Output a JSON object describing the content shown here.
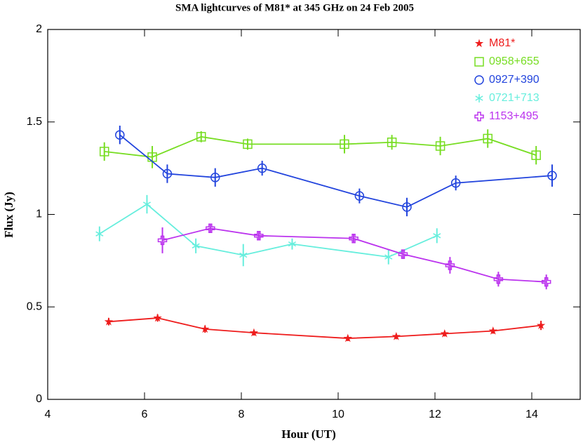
{
  "chart_data": {
    "type": "line",
    "title": "SMA lightcurves of M81* at 345 GHz on 24 Feb 2005",
    "x_label": "Hour (UT)",
    "y_label": "Flux (Jy)",
    "xlim": [
      4,
      15
    ],
    "ylim": [
      0,
      2
    ],
    "xticks": [
      4,
      6,
      8,
      10,
      12,
      14
    ],
    "yticks": [
      0,
      0.5,
      1,
      1.5,
      2
    ],
    "legend": "top-right",
    "series": [
      {
        "name": "M81*",
        "color": "#ee1c1c",
        "marker": "star",
        "x": [
          5.26,
          6.27,
          7.25,
          8.26,
          10.2,
          11.2,
          12.2,
          13.2,
          14.19
        ],
        "values": [
          0.42,
          0.44,
          0.38,
          0.36,
          0.33,
          0.34,
          0.355,
          0.37,
          0.4
        ],
        "errors": [
          0.02,
          0.02,
          0.02,
          0.015,
          0.015,
          0.015,
          0.015,
          0.015,
          0.025
        ]
      },
      {
        "name": "0958+655",
        "color": "#77dd22",
        "marker": "square",
        "x": [
          5.17,
          6.16,
          7.17,
          8.13,
          10.13,
          11.11,
          12.11,
          13.09,
          14.09
        ],
        "values": [
          1.34,
          1.31,
          1.42,
          1.38,
          1.38,
          1.39,
          1.37,
          1.41,
          1.32
        ],
        "errors": [
          0.05,
          0.06,
          0.03,
          0.03,
          0.05,
          0.04,
          0.05,
          0.05,
          0.05
        ]
      },
      {
        "name": "0927+390",
        "color": "#2244dd",
        "marker": "circle",
        "x": [
          5.49,
          6.47,
          7.46,
          8.43,
          10.44,
          11.42,
          12.43,
          14.42
        ],
        "values": [
          1.43,
          1.22,
          1.2,
          1.25,
          1.1,
          1.04,
          1.17,
          1.21
        ],
        "errors": [
          0.05,
          0.05,
          0.05,
          0.04,
          0.04,
          0.05,
          0.04,
          0.06
        ]
      },
      {
        "name": "0721+713",
        "color": "#66eedd",
        "marker": "asterisk",
        "x": [
          5.07,
          6.05,
          7.06,
          8.04,
          9.05,
          11.04,
          12.04
        ],
        "values": [
          0.895,
          1.055,
          0.83,
          0.78,
          0.84,
          0.77,
          0.885
        ],
        "errors": [
          0.04,
          0.05,
          0.04,
          0.06,
          0.03,
          0.04,
          0.04
        ]
      },
      {
        "name": "1153+495",
        "color": "#bb33ee",
        "marker": "plus",
        "x": [
          6.37,
          7.36,
          8.36,
          10.32,
          11.34,
          12.31,
          13.31,
          14.3
        ],
        "values": [
          0.86,
          0.925,
          0.885,
          0.87,
          0.785,
          0.725,
          0.65,
          0.635
        ],
        "errors": [
          0.07,
          0.025,
          0.025,
          0.025,
          0.025,
          0.045,
          0.04,
          0.04
        ]
      }
    ]
  }
}
